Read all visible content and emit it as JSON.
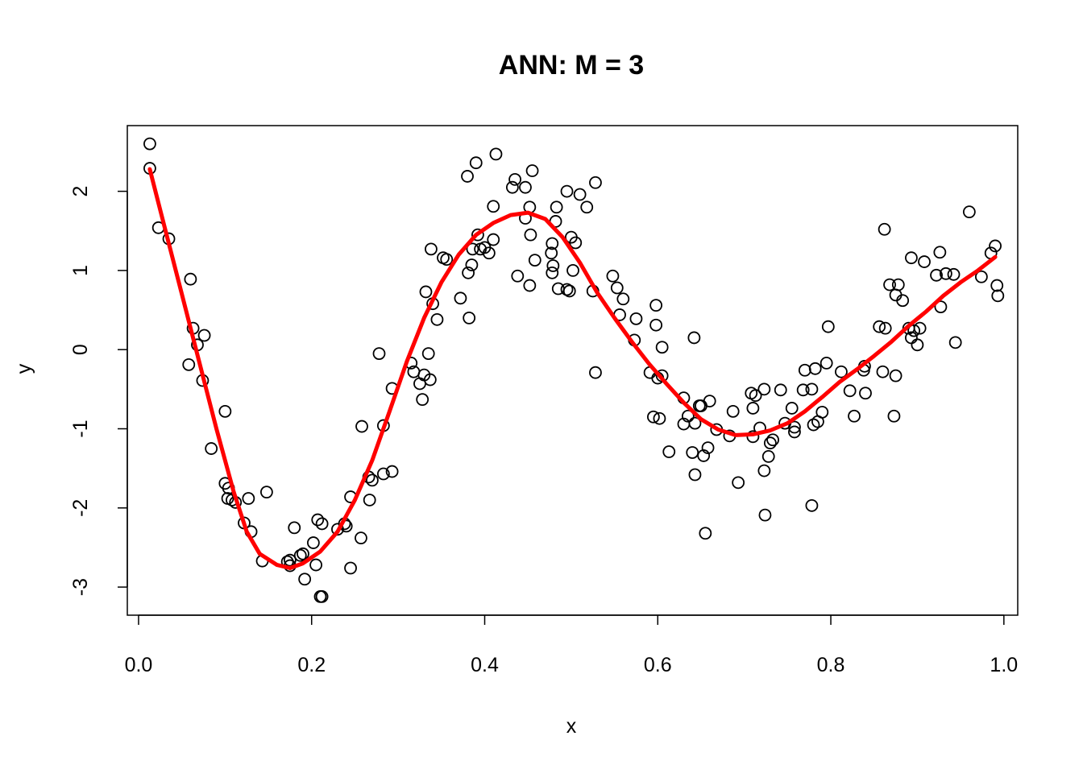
{
  "chart_data": {
    "type": "scatter",
    "title": "ANN: M = 3",
    "xlabel": "x",
    "ylabel": "y",
    "xlim": [
      -0.013,
      1.016
    ],
    "ylim": [
      -3.355,
      2.83
    ],
    "x_ticks": [
      0.0,
      0.2,
      0.4,
      0.6,
      0.8,
      1.0
    ],
    "x_tick_labels": [
      "0.0",
      "0.2",
      "0.4",
      "0.6",
      "0.8",
      "1.0"
    ],
    "y_ticks": [
      -3,
      -2,
      -1,
      0,
      1,
      2
    ],
    "y_tick_labels": [
      "-3",
      "-2",
      "-1",
      "0",
      "1",
      "2"
    ],
    "grid": false,
    "point_color": "#000000",
    "line_color": "#ff0000",
    "points": [
      [
        0.013,
        2.6
      ],
      [
        0.013,
        2.29
      ],
      [
        0.023,
        1.54
      ],
      [
        0.035,
        1.4
      ],
      [
        0.06,
        0.89
      ],
      [
        0.058,
        -0.19
      ],
      [
        0.063,
        0.27
      ],
      [
        0.068,
        0.06
      ],
      [
        0.074,
        -0.39
      ],
      [
        0.076,
        0.18
      ],
      [
        0.084,
        -1.25
      ],
      [
        0.1,
        -0.78
      ],
      [
        0.1,
        -1.69
      ],
      [
        0.103,
        -1.88
      ],
      [
        0.104,
        -1.75
      ],
      [
        0.108,
        -1.9
      ],
      [
        0.112,
        -1.93
      ],
      [
        0.122,
        -2.19
      ],
      [
        0.127,
        -1.88
      ],
      [
        0.13,
        -2.3
      ],
      [
        0.143,
        -2.67
      ],
      [
        0.148,
        -1.8
      ],
      [
        0.172,
        -2.68
      ],
      [
        0.175,
        -2.73
      ],
      [
        0.175,
        -2.66
      ],
      [
        0.18,
        -2.25
      ],
      [
        0.187,
        -2.6
      ],
      [
        0.19,
        -2.58
      ],
      [
        0.192,
        -2.9
      ],
      [
        0.202,
        -2.44
      ],
      [
        0.205,
        -2.72
      ],
      [
        0.207,
        -2.15
      ],
      [
        0.21,
        -3.12
      ],
      [
        0.212,
        -3.12
      ],
      [
        0.212,
        -2.2
      ],
      [
        0.23,
        -2.27
      ],
      [
        0.238,
        -2.2
      ],
      [
        0.24,
        -2.23
      ],
      [
        0.245,
        -1.86
      ],
      [
        0.245,
        -2.76
      ],
      [
        0.257,
        -2.38
      ],
      [
        0.258,
        -0.97
      ],
      [
        0.266,
        -1.61
      ],
      [
        0.267,
        -1.9
      ],
      [
        0.27,
        -1.65
      ],
      [
        0.278,
        -0.05
      ],
      [
        0.283,
        -0.96
      ],
      [
        0.283,
        -1.57
      ],
      [
        0.293,
        -1.54
      ],
      [
        0.293,
        -0.49
      ],
      [
        0.315,
        -0.17
      ],
      [
        0.318,
        -0.28
      ],
      [
        0.325,
        -0.43
      ],
      [
        0.328,
        -0.63
      ],
      [
        0.33,
        -0.32
      ],
      [
        0.332,
        0.73
      ],
      [
        0.335,
        -0.05
      ],
      [
        0.337,
        -0.38
      ],
      [
        0.338,
        1.27
      ],
      [
        0.34,
        0.58
      ],
      [
        0.345,
        0.38
      ],
      [
        0.352,
        1.16
      ],
      [
        0.356,
        1.14
      ],
      [
        0.372,
        0.65
      ],
      [
        0.38,
        2.19
      ],
      [
        0.381,
        0.97
      ],
      [
        0.382,
        0.4
      ],
      [
        0.385,
        1.07
      ],
      [
        0.386,
        1.27
      ],
      [
        0.39,
        2.36
      ],
      [
        0.392,
        1.45
      ],
      [
        0.395,
        1.27
      ],
      [
        0.4,
        1.29
      ],
      [
        0.405,
        1.22
      ],
      [
        0.41,
        1.39
      ],
      [
        0.41,
        1.81
      ],
      [
        0.413,
        2.47
      ],
      [
        0.432,
        2.05
      ],
      [
        0.435,
        2.15
      ],
      [
        0.438,
        0.93
      ],
      [
        0.447,
        2.05
      ],
      [
        0.447,
        1.66
      ],
      [
        0.452,
        1.8
      ],
      [
        0.452,
        0.81
      ],
      [
        0.453,
        1.45
      ],
      [
        0.455,
        2.26
      ],
      [
        0.458,
        1.13
      ],
      [
        0.477,
        1.22
      ],
      [
        0.478,
        0.97
      ],
      [
        0.478,
        1.34
      ],
      [
        0.479,
        1.06
      ],
      [
        0.482,
        1.62
      ],
      [
        0.483,
        1.8
      ],
      [
        0.485,
        0.77
      ],
      [
        0.495,
        2.0
      ],
      [
        0.495,
        0.76
      ],
      [
        0.498,
        0.74
      ],
      [
        0.5,
        1.42
      ],
      [
        0.502,
        1.0
      ],
      [
        0.505,
        1.35
      ],
      [
        0.51,
        1.96
      ],
      [
        0.518,
        1.8
      ],
      [
        0.525,
        0.74
      ],
      [
        0.528,
        2.11
      ],
      [
        0.528,
        -0.29
      ],
      [
        0.548,
        0.93
      ],
      [
        0.553,
        0.78
      ],
      [
        0.556,
        0.44
      ],
      [
        0.56,
        0.64
      ],
      [
        0.573,
        0.12
      ],
      [
        0.575,
        0.39
      ],
      [
        0.591,
        -0.29
      ],
      [
        0.595,
        -0.85
      ],
      [
        0.598,
        0.56
      ],
      [
        0.598,
        0.31
      ],
      [
        0.6,
        -0.36
      ],
      [
        0.602,
        -0.87
      ],
      [
        0.605,
        0.03
      ],
      [
        0.605,
        -0.33
      ],
      [
        0.613,
        -1.29
      ],
      [
        0.63,
        -0.61
      ],
      [
        0.63,
        -0.94
      ],
      [
        0.635,
        -0.84
      ],
      [
        0.64,
        -1.3
      ],
      [
        0.642,
        0.15
      ],
      [
        0.643,
        -0.93
      ],
      [
        0.643,
        -1.58
      ],
      [
        0.648,
        -0.71
      ],
      [
        0.65,
        -0.71
      ],
      [
        0.653,
        -1.34
      ],
      [
        0.655,
        -2.32
      ],
      [
        0.658,
        -1.24
      ],
      [
        0.66,
        -0.65
      ],
      [
        0.668,
        -1.01
      ],
      [
        0.683,
        -1.09
      ],
      [
        0.687,
        -0.78
      ],
      [
        0.693,
        -1.68
      ],
      [
        0.708,
        -0.55
      ],
      [
        0.71,
        -0.74
      ],
      [
        0.71,
        -1.1
      ],
      [
        0.713,
        -0.58
      ],
      [
        0.718,
        -0.99
      ],
      [
        0.723,
        -0.5
      ],
      [
        0.723,
        -1.53
      ],
      [
        0.724,
        -2.09
      ],
      [
        0.728,
        -1.35
      ],
      [
        0.73,
        -1.18
      ],
      [
        0.733,
        -1.14
      ],
      [
        0.742,
        -0.51
      ],
      [
        0.747,
        -0.93
      ],
      [
        0.755,
        -0.74
      ],
      [
        0.758,
        -0.98
      ],
      [
        0.758,
        -1.04
      ],
      [
        0.768,
        -0.51
      ],
      [
        0.77,
        -0.26
      ],
      [
        0.778,
        -1.97
      ],
      [
        0.778,
        -0.5
      ],
      [
        0.78,
        -0.95
      ],
      [
        0.782,
        -0.24
      ],
      [
        0.785,
        -0.91
      ],
      [
        0.79,
        -0.79
      ],
      [
        0.795,
        -0.17
      ],
      [
        0.797,
        0.29
      ],
      [
        0.812,
        -0.28
      ],
      [
        0.822,
        -0.52
      ],
      [
        0.827,
        -0.84
      ],
      [
        0.838,
        -0.26
      ],
      [
        0.839,
        -0.21
      ],
      [
        0.84,
        -0.55
      ],
      [
        0.856,
        0.29
      ],
      [
        0.86,
        -0.28
      ],
      [
        0.862,
        1.52
      ],
      [
        0.863,
        0.27
      ],
      [
        0.868,
        0.82
      ],
      [
        0.873,
        -0.84
      ],
      [
        0.875,
        -0.33
      ],
      [
        0.875,
        0.69
      ],
      [
        0.878,
        0.82
      ],
      [
        0.883,
        0.62
      ],
      [
        0.89,
        0.27
      ],
      [
        0.893,
        1.16
      ],
      [
        0.893,
        0.15
      ],
      [
        0.896,
        0.24
      ],
      [
        0.9,
        0.06
      ],
      [
        0.903,
        0.27
      ],
      [
        0.908,
        1.11
      ],
      [
        0.922,
        0.94
      ],
      [
        0.926,
        1.23
      ],
      [
        0.927,
        0.54
      ],
      [
        0.933,
        0.96
      ],
      [
        0.942,
        0.95
      ],
      [
        0.944,
        0.09
      ],
      [
        0.96,
        1.74
      ],
      [
        0.974,
        0.92
      ],
      [
        0.985,
        1.22
      ],
      [
        0.99,
        1.31
      ],
      [
        0.992,
        0.81
      ],
      [
        0.993,
        0.68
      ]
    ],
    "fit_curve": [
      [
        0.013,
        2.28
      ],
      [
        0.03,
        1.55
      ],
      [
        0.05,
        0.7
      ],
      [
        0.07,
        -0.15
      ],
      [
        0.09,
        -1.0
      ],
      [
        0.11,
        -1.8
      ],
      [
        0.125,
        -2.3
      ],
      [
        0.14,
        -2.58
      ],
      [
        0.16,
        -2.72
      ],
      [
        0.175,
        -2.76
      ],
      [
        0.19,
        -2.7
      ],
      [
        0.21,
        -2.55
      ],
      [
        0.23,
        -2.3
      ],
      [
        0.25,
        -1.9
      ],
      [
        0.27,
        -1.4
      ],
      [
        0.29,
        -0.78
      ],
      [
        0.31,
        -0.15
      ],
      [
        0.33,
        0.4
      ],
      [
        0.35,
        0.85
      ],
      [
        0.37,
        1.2
      ],
      [
        0.39,
        1.45
      ],
      [
        0.41,
        1.6
      ],
      [
        0.43,
        1.7
      ],
      [
        0.45,
        1.73
      ],
      [
        0.47,
        1.65
      ],
      [
        0.49,
        1.42
      ],
      [
        0.51,
        1.1
      ],
      [
        0.53,
        0.72
      ],
      [
        0.55,
        0.4
      ],
      [
        0.57,
        0.1
      ],
      [
        0.59,
        -0.18
      ],
      [
        0.61,
        -0.43
      ],
      [
        0.63,
        -0.67
      ],
      [
        0.65,
        -0.88
      ],
      [
        0.67,
        -1.01
      ],
      [
        0.69,
        -1.08
      ],
      [
        0.71,
        -1.07
      ],
      [
        0.73,
        -1.02
      ],
      [
        0.75,
        -0.93
      ],
      [
        0.77,
        -0.78
      ],
      [
        0.79,
        -0.6
      ],
      [
        0.81,
        -0.41
      ],
      [
        0.83,
        -0.25
      ],
      [
        0.85,
        -0.08
      ],
      [
        0.87,
        0.1
      ],
      [
        0.89,
        0.3
      ],
      [
        0.91,
        0.48
      ],
      [
        0.93,
        0.68
      ],
      [
        0.95,
        0.85
      ],
      [
        0.97,
        1.0
      ],
      [
        0.99,
        1.17
      ]
    ]
  }
}
